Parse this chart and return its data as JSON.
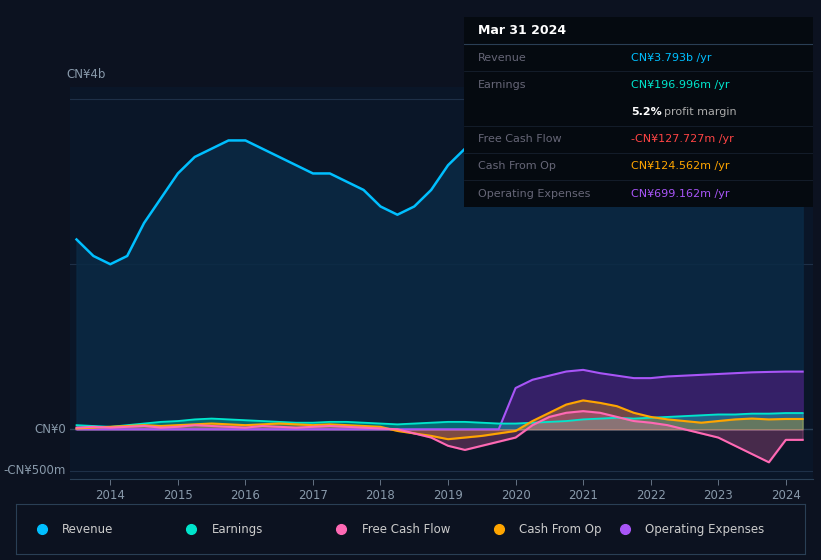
{
  "bg_color": "#0c1220",
  "plot_bg_color": "#0a1628",
  "tooltip_bg": "#000000",
  "title": "Mar 31 2024",
  "tooltip": {
    "Revenue": {
      "value": "CN¥3.793b /yr",
      "color": "#00bfff"
    },
    "Earnings": {
      "value": "CN¥196.996m /yr",
      "color": "#00e5cc"
    },
    "profit_margin": "5.2% profit margin",
    "Free Cash Flow": {
      "value": "-CN¥127.727m /yr",
      "color": "#ff4444"
    },
    "Cash From Op": {
      "value": "CN¥124.562m /yr",
      "color": "#ffa500"
    },
    "Operating Expenses": {
      "value": "CN¥699.162m /yr",
      "color": "#a855f7"
    }
  },
  "legend": [
    {
      "label": "Revenue",
      "color": "#00bfff"
    },
    {
      "label": "Earnings",
      "color": "#00e5cc"
    },
    {
      "label": "Free Cash Flow",
      "color": "#ff69b4"
    },
    {
      "label": "Cash From Op",
      "color": "#ffa500"
    },
    {
      "label": "Operating Expenses",
      "color": "#a855f7"
    }
  ],
  "ylabel_top": "CN¥4b",
  "ylabel_zero": "CN¥0",
  "ylabel_neg": "-CN¥500m",
  "x_ticks": [
    2014,
    2015,
    2016,
    2017,
    2018,
    2019,
    2020,
    2021,
    2022,
    2023,
    2024
  ],
  "revenue_color": "#00bfff",
  "revenue_fill_color": "#0a2a45",
  "earnings_color": "#00e5cc",
  "fcf_color": "#ff69b4",
  "cashfromop_color": "#ffa500",
  "opex_color": "#a855f7",
  "opex_fill_color": "#3d1f6e"
}
